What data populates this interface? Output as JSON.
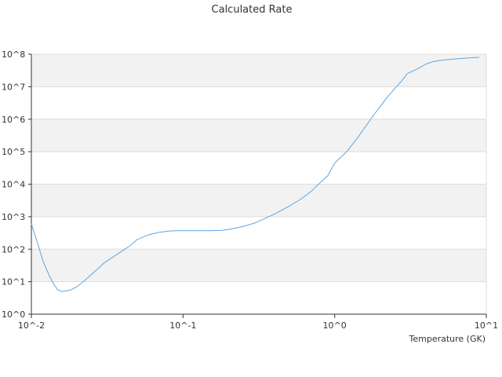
{
  "chart_data": {
    "type": "line",
    "title": "Calculated Rate",
    "xlabel": "Temperature (GK)",
    "ylabel": "",
    "x_scale": "log",
    "y_scale": "log",
    "xlim": [
      0.01,
      10
    ],
    "ylim": [
      1,
      100000000
    ],
    "x_ticks": [
      {
        "value": 0.01,
        "label": "10^-2"
      },
      {
        "value": 0.1,
        "label": "10^-1"
      },
      {
        "value": 1,
        "label": "10^0"
      },
      {
        "value": 10,
        "label": "10^1"
      }
    ],
    "y_ticks": [
      {
        "value": 1,
        "label": "10^0"
      },
      {
        "value": 10,
        "label": "10^1"
      },
      {
        "value": 100,
        "label": "10^2"
      },
      {
        "value": 1000,
        "label": "10^3"
      },
      {
        "value": 10000,
        "label": "10^4"
      },
      {
        "value": 100000,
        "label": "10^5"
      },
      {
        "value": 1000000,
        "label": "10^6"
      },
      {
        "value": 10000000,
        "label": "10^7"
      },
      {
        "value": 100000000,
        "label": "10^8"
      }
    ],
    "grid": true,
    "alternating_bands": true,
    "colors": {
      "line": "#5aa6e6",
      "band": "#f2f2f2",
      "grid": "#dcdcdc",
      "axis": "#333333"
    },
    "series": [
      {
        "x": [
          0.01,
          0.011,
          0.012,
          0.013,
          0.014,
          0.015,
          0.016,
          0.018,
          0.02,
          0.022,
          0.025,
          0.028,
          0.03,
          0.035,
          0.04,
          0.045,
          0.05,
          0.06,
          0.07,
          0.08,
          0.09,
          0.1,
          0.12,
          0.15,
          0.18,
          0.2,
          0.25,
          0.3,
          0.35,
          0.4,
          0.45,
          0.5,
          0.6,
          0.7,
          0.8,
          0.9,
          1.0,
          1.2,
          1.4,
          1.6,
          1.8,
          2.0,
          2.2,
          2.5,
          2.8,
          3.0,
          3.5,
          4.0,
          4.5,
          5.0,
          6.0,
          7.0,
          8.0,
          9.0
        ],
        "y": [
          600,
          150,
          40,
          17,
          8.5,
          5.5,
          5.0,
          5.5,
          7.0,
          10,
          17,
          27,
          37,
          60,
          90,
          130,
          200,
          280,
          330,
          360,
          370,
          370,
          370,
          370,
          380,
          400,
          500,
          650,
          900,
          1200,
          1600,
          2100,
          3500,
          6000,
          11000,
          18000,
          45000,
          100000,
          250000,
          600000,
          1300000,
          2500000,
          4500000,
          9000000,
          16000000,
          25000000,
          35000000,
          50000000,
          60000000,
          65000000,
          70000000,
          75000000,
          78000000,
          80000000
        ]
      }
    ]
  }
}
